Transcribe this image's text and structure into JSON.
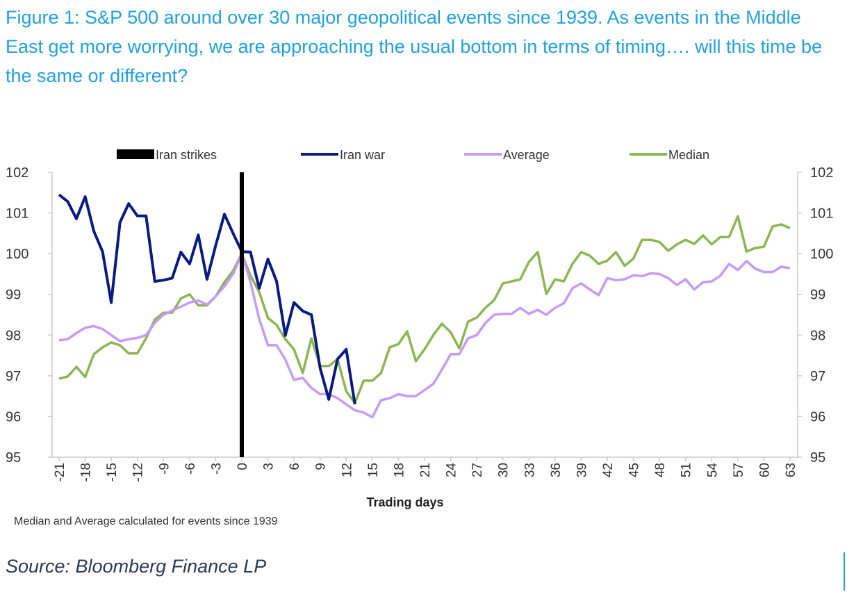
{
  "chart_data": {
    "type": "line",
    "title": "Figure 1: S&P 500 around over 30 major geopolitical events since 1939. As events in the Middle East get more worrying, we are approaching the usual bottom in terms of timing…. will this time be the same or different?",
    "xlabel": "Trading days",
    "ylabel": "",
    "xlim": [
      -21,
      63
    ],
    "ylim": [
      95,
      102
    ],
    "x_ticks": [
      -21,
      -18,
      -15,
      -12,
      -9,
      -6,
      -3,
      0,
      3,
      6,
      9,
      12,
      15,
      18,
      21,
      24,
      27,
      30,
      33,
      36,
      39,
      42,
      45,
      48,
      51,
      54,
      57,
      60,
      63
    ],
    "y_ticks": [
      95,
      96,
      97,
      98,
      99,
      100,
      101,
      102
    ],
    "dual_y_axis": true,
    "grid": false,
    "legend_position": "top",
    "event_marker": {
      "name": "Iran strikes",
      "x": 0,
      "color": "#000000"
    },
    "series": [
      {
        "name": "Iran war",
        "color": "#0a1a80",
        "x_start": -21,
        "values": [
          101.45,
          101.28,
          100.86,
          101.4,
          100.55,
          100.05,
          98.8,
          100.77,
          101.23,
          100.93,
          100.93,
          99.32,
          99.35,
          99.4,
          100.04,
          99.75,
          100.46,
          99.37,
          100.2,
          100.97,
          100.5,
          100.05,
          100.04,
          99.15,
          99.87,
          99.32,
          97.99,
          98.8,
          98.59,
          98.5,
          97.19,
          96.42,
          97.41,
          97.65,
          96.3
        ]
      },
      {
        "name": "Average",
        "color": "#c89af5",
        "x_start": -21,
        "values": [
          97.87,
          97.9,
          98.05,
          98.18,
          98.22,
          98.15,
          98.0,
          97.85,
          97.9,
          97.93,
          98.0,
          98.3,
          98.5,
          98.6,
          98.7,
          98.8,
          98.85,
          98.75,
          98.95,
          99.2,
          99.5,
          100.0,
          99.3,
          98.4,
          97.75,
          97.75,
          97.4,
          96.9,
          96.95,
          96.7,
          96.55,
          96.55,
          96.45,
          96.3,
          96.15,
          96.1,
          95.98,
          96.4,
          96.45,
          96.55,
          96.5,
          96.5,
          96.65,
          96.8,
          97.15,
          97.53,
          97.53,
          97.92,
          98.0,
          98.3,
          98.5,
          98.52,
          98.52,
          98.67,
          98.52,
          98.62,
          98.5,
          98.67,
          98.78,
          99.15,
          99.27,
          99.12,
          98.98,
          99.4,
          99.35,
          99.37,
          99.47,
          99.45,
          99.52,
          99.5,
          99.4,
          99.23,
          99.37,
          99.12,
          99.3,
          99.32,
          99.46,
          99.75,
          99.6,
          99.82,
          99.63,
          99.55,
          99.55,
          99.68,
          99.64
        ]
      },
      {
        "name": "Median",
        "color": "#8bb650",
        "x_start": -21,
        "values": [
          96.93,
          96.98,
          97.22,
          96.97,
          97.53,
          97.7,
          97.82,
          97.75,
          97.55,
          97.55,
          97.92,
          98.38,
          98.55,
          98.55,
          98.9,
          99.0,
          98.73,
          98.73,
          98.95,
          99.3,
          99.58,
          100.0,
          99.46,
          99.06,
          98.42,
          98.25,
          97.9,
          97.65,
          97.07,
          97.92,
          97.24,
          97.24,
          97.41,
          96.62,
          96.33,
          96.88,
          96.88,
          97.07,
          97.7,
          97.78,
          98.09,
          97.36,
          97.65,
          98.0,
          98.28,
          98.07,
          97.67,
          98.33,
          98.43,
          98.67,
          98.86,
          99.27,
          99.32,
          99.37,
          99.8,
          100.04,
          99.01,
          99.37,
          99.32,
          99.75,
          100.04,
          99.95,
          99.75,
          99.83,
          100.04,
          99.7,
          99.88,
          100.34,
          100.34,
          100.29,
          100.07,
          100.23,
          100.34,
          100.24,
          100.45,
          100.23,
          100.41,
          100.41,
          100.92,
          100.05,
          100.14,
          100.17,
          100.67,
          100.72,
          100.63
        ]
      }
    ],
    "footnote": "Median and Average calculated for events since 1939",
    "source": "Source: Bloomberg Finance LP"
  }
}
